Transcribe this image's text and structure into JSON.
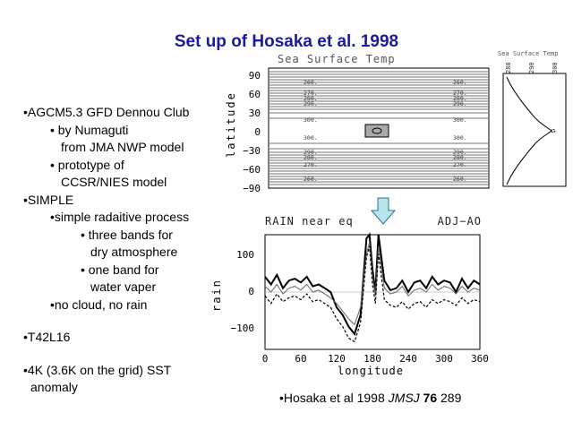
{
  "title": "Set up of Hosaka et al. 1998",
  "bullets": [
    {
      "level": 1,
      "lines": [
        "•AGCM5.3 GFD Dennou Club"
      ]
    },
    {
      "level": 2,
      "lines": [
        "• by Numaguti",
        "from JMA NWP model"
      ]
    },
    {
      "level": 2,
      "lines": [
        "• prototype of",
        "CCSR/NIES model"
      ]
    },
    {
      "level": 1,
      "lines": [
        "•SIMPLE"
      ]
    },
    {
      "level": 2,
      "lines": [
        "•simple radaitive process"
      ]
    },
    {
      "level": 3,
      "lines": [
        "• three bands for",
        "dry atmosphere"
      ]
    },
    {
      "level": 3,
      "lines": [
        "• one band for",
        "water vaper"
      ]
    },
    {
      "level": 2,
      "lines": [
        "•no cloud, no rain"
      ]
    },
    {
      "level": 1,
      "lines": [
        "•T42L16"
      ]
    },
    {
      "level": 1,
      "lines": [
        "•4K (3.6K on the grid) SST",
        "anomaly"
      ]
    }
  ],
  "citation": {
    "prefix": "•Hosaka et al 1998 ",
    "journal": "JMSJ",
    "volume": "76",
    "pages": " 289"
  },
  "sst_map": {
    "title": "Sea Surface Temp",
    "ylabel": "latitude",
    "yticks": [
      "90",
      "60",
      "30",
      "0",
      "−30",
      "−60",
      "−90"
    ],
    "contour_labels_north": [
      "260.",
      "270.",
      "280.",
      "290.",
      "300."
    ],
    "contour_labels_south": [
      "300.",
      "290.",
      "280.",
      "270.",
      "260."
    ]
  },
  "sst_profile": {
    "title": "Sea Surface Temp",
    "ticks": [
      "280",
      "290",
      "300"
    ]
  },
  "rain_plot": {
    "title": "RAIN near eq",
    "tag": "ADJ−AO",
    "ylabel": "rain",
    "xlabel": "longitude",
    "xticks": [
      "0",
      "60",
      "120",
      "180",
      "240",
      "300",
      "360"
    ],
    "yticks": [
      "100",
      "0",
      "−100"
    ]
  },
  "chart_data": [
    {
      "type": "line",
      "title": "RAIN near eq",
      "xlabel": "longitude",
      "ylabel": "rain",
      "xlim": [
        0,
        360
      ],
      "ylim": [
        -150,
        150
      ],
      "series": [
        {
          "name": "thick",
          "x": [
            0,
            10,
            20,
            30,
            40,
            50,
            60,
            70,
            80,
            90,
            100,
            110,
            120,
            130,
            140,
            150,
            160,
            170,
            175,
            180,
            185,
            190,
            200,
            210,
            220,
            230,
            240,
            250,
            260,
            270,
            280,
            290,
            300,
            310,
            320,
            330,
            340,
            350,
            360
          ],
          "values": [
            40,
            20,
            45,
            10,
            30,
            35,
            25,
            40,
            15,
            20,
            10,
            0,
            -40,
            -60,
            -90,
            -110,
            -60,
            140,
            150,
            60,
            0,
            150,
            30,
            5,
            10,
            30,
            0,
            25,
            30,
            10,
            40,
            20,
            30,
            25,
            0,
            35,
            10,
            30,
            20
          ]
        },
        {
          "name": "thin",
          "x": [
            0,
            10,
            20,
            30,
            40,
            50,
            60,
            70,
            80,
            90,
            100,
            110,
            120,
            130,
            140,
            150,
            160,
            170,
            175,
            180,
            185,
            190,
            200,
            210,
            220,
            230,
            240,
            250,
            260,
            270,
            280,
            290,
            300,
            310,
            320,
            330,
            340,
            350,
            360
          ],
          "values": [
            15,
            0,
            20,
            -5,
            10,
            15,
            5,
            20,
            0,
            5,
            -5,
            -15,
            -30,
            -50,
            -70,
            -85,
            -40,
            100,
            130,
            40,
            -10,
            120,
            10,
            -5,
            0,
            15,
            -10,
            5,
            10,
            0,
            20,
            5,
            15,
            10,
            -5,
            15,
            0,
            10,
            5
          ]
        },
        {
          "name": "dashed",
          "x": [
            0,
            10,
            20,
            30,
            40,
            50,
            60,
            70,
            80,
            90,
            100,
            110,
            120,
            130,
            140,
            150,
            160,
            170,
            175,
            180,
            185,
            190,
            200,
            210,
            220,
            230,
            240,
            250,
            260,
            270,
            280,
            290,
            300,
            310,
            320,
            330,
            340,
            350,
            360
          ],
          "values": [
            -10,
            -30,
            -5,
            -25,
            -15,
            -10,
            -20,
            -5,
            -25,
            -20,
            -30,
            -40,
            -70,
            -90,
            -120,
            -130,
            -80,
            90,
            120,
            20,
            -30,
            100,
            -20,
            -35,
            -40,
            -25,
            -45,
            -30,
            -25,
            -40,
            -20,
            -30,
            -20,
            -25,
            -35,
            -15,
            -30,
            -20,
            -25
          ]
        }
      ]
    }
  ]
}
